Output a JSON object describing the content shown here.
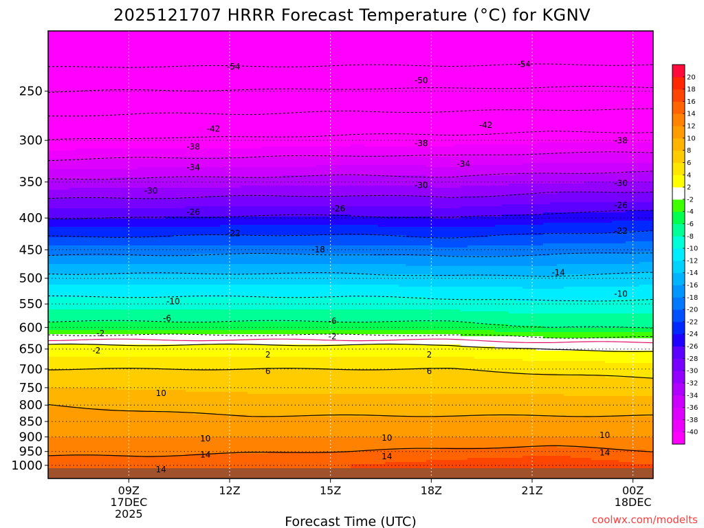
{
  "chart_data": {
    "type": "heatmap",
    "title": "2025121707 HRRR Forecast Temperature (°C) for KGNV",
    "xlabel": "Forecast Time (UTC)",
    "ylabel": "",
    "credit": "coolwx.com/modelts",
    "x_range_hours": [
      -2,
      28
    ],
    "y_axis": {
      "type": "log",
      "range": [
        1050,
        200
      ],
      "ticks": [
        "250",
        "300",
        "350",
        "400",
        "450",
        "500",
        "550",
        "600",
        "650",
        "700",
        "750",
        "800",
        "850",
        "900",
        "950",
        "1000"
      ]
    },
    "x_ticks": [
      {
        "hour": 2,
        "lines": [
          "09Z",
          "17DEC",
          "2025"
        ]
      },
      {
        "hour": 7,
        "lines": [
          "12Z"
        ]
      },
      {
        "hour": 12,
        "lines": [
          "15Z"
        ]
      },
      {
        "hour": 17,
        "lines": [
          "18Z"
        ]
      },
      {
        "hour": 22,
        "lines": [
          "21Z"
        ]
      },
      {
        "hour": 27,
        "lines": [
          "00Z",
          "18DEC"
        ]
      }
    ],
    "colorbar": {
      "levels": [
        -42,
        -40,
        -38,
        -36,
        -34,
        -32,
        -30,
        -28,
        -26,
        -24,
        -22,
        -20,
        -18,
        -16,
        -14,
        -12,
        -10,
        -8,
        -6,
        -4,
        -2,
        2,
        4,
        6,
        8,
        10,
        12,
        14,
        16,
        18,
        20,
        22
      ],
      "colors": [
        "#ff00ff",
        "#ee00ff",
        "#dd00ff",
        "#cc00ff",
        "#b000ff",
        "#9400ff",
        "#7800ff",
        "#5c00ff",
        "#2000ff",
        "#0028ff",
        "#0050ff",
        "#0078ff",
        "#0096ff",
        "#00b4ff",
        "#00d2ff",
        "#00ecff",
        "#00ffd8",
        "#00ff96",
        "#00ff50",
        "#40ff00",
        "#ffffff",
        "#ffff00",
        "#ffe600",
        "#ffcc00",
        "#ffb400",
        "#ff9c00",
        "#ff8200",
        "#ff6400",
        "#ff4600",
        "#ff2800",
        "#ff0a3c"
      ],
      "labels": [
        "20",
        "18",
        "16",
        "14",
        "12",
        "10",
        "8",
        "6",
        "4",
        "2",
        "-2",
        "-4",
        "-6",
        "-8",
        "-10",
        "-12",
        "-14",
        "-16",
        "-18",
        "-20",
        "-22",
        "-24",
        "-26",
        "-28",
        "-30",
        "-32",
        "-34",
        "-36",
        "-38",
        "-40"
      ]
    },
    "profile_columns": [
      {
        "hour": -2,
        "sfc": 25,
        "pts": [
          [
            200,
            -60
          ],
          [
            300,
            -42
          ],
          [
            400,
            -26
          ],
          [
            500,
            -13
          ],
          [
            600,
            -5
          ],
          [
            640,
            2
          ],
          [
            700,
            6
          ],
          [
            800,
            10
          ],
          [
            900,
            12
          ],
          [
            1000,
            15
          ]
        ]
      },
      {
        "hour": 3,
        "sfc": 25,
        "pts": [
          [
            200,
            -60
          ],
          [
            300,
            -41.5
          ],
          [
            400,
            -26
          ],
          [
            500,
            -13
          ],
          [
            600,
            -5
          ],
          [
            640,
            2
          ],
          [
            700,
            6
          ],
          [
            800,
            9.5
          ],
          [
            900,
            12
          ],
          [
            1000,
            15
          ]
        ]
      },
      {
        "hour": 8,
        "sfc": 25,
        "pts": [
          [
            200,
            -60
          ],
          [
            300,
            -41.5
          ],
          [
            400,
            -25.5
          ],
          [
            500,
            -13
          ],
          [
            600,
            -5
          ],
          [
            640,
            2
          ],
          [
            700,
            6
          ],
          [
            800,
            9
          ],
          [
            900,
            12
          ],
          [
            1000,
            15.5
          ]
        ]
      },
      {
        "hour": 13,
        "sfc": 25,
        "pts": [
          [
            200,
            -60
          ],
          [
            300,
            -41
          ],
          [
            400,
            -25.5
          ],
          [
            500,
            -13
          ],
          [
            600,
            -5
          ],
          [
            640,
            2
          ],
          [
            700,
            6
          ],
          [
            800,
            9
          ],
          [
            900,
            12
          ],
          [
            1000,
            16
          ]
        ]
      },
      {
        "hour": 18,
        "sfc": 25,
        "pts": [
          [
            200,
            -60
          ],
          [
            300,
            -41
          ],
          [
            400,
            -26
          ],
          [
            500,
            -13.5
          ],
          [
            600,
            -5
          ],
          [
            640,
            2
          ],
          [
            700,
            6
          ],
          [
            800,
            9
          ],
          [
            900,
            12
          ],
          [
            1000,
            17
          ]
        ]
      },
      {
        "hour": 23,
        "sfc": 25,
        "pts": [
          [
            200,
            -60
          ],
          [
            300,
            -40.5
          ],
          [
            400,
            -25
          ],
          [
            500,
            -13.5
          ],
          [
            600,
            -6
          ],
          [
            640,
            1
          ],
          [
            700,
            5.5
          ],
          [
            800,
            9
          ],
          [
            900,
            12
          ],
          [
            1000,
            18
          ]
        ]
      },
      {
        "hour": 28,
        "sfc": 25,
        "pts": [
          [
            200,
            -60
          ],
          [
            300,
            -40.5
          ],
          [
            400,
            -24.5
          ],
          [
            500,
            -13
          ],
          [
            600,
            -6
          ],
          [
            640,
            1
          ],
          [
            700,
            5
          ],
          [
            800,
            9
          ],
          [
            900,
            12
          ],
          [
            1000,
            16
          ]
        ]
      }
    ],
    "contour_labels": [
      {
        "text": "-54",
        "hour": 7.2,
        "p": 228
      },
      {
        "text": "-54",
        "hour": 21.6,
        "p": 226
      },
      {
        "text": "-50",
        "hour": 16.5,
        "p": 240
      },
      {
        "text": "-42",
        "hour": 6.2,
        "p": 287
      },
      {
        "text": "-42",
        "hour": 19.7,
        "p": 283
      },
      {
        "text": "-38",
        "hour": 5.2,
        "p": 307
      },
      {
        "text": "-38",
        "hour": 16.5,
        "p": 303
      },
      {
        "text": "-38",
        "hour": 26.4,
        "p": 300
      },
      {
        "text": "-34",
        "hour": 5.2,
        "p": 331
      },
      {
        "text": "-34",
        "hour": 18.6,
        "p": 327
      },
      {
        "text": "-30",
        "hour": 3.1,
        "p": 361
      },
      {
        "text": "-30",
        "hour": 16.5,
        "p": 354
      },
      {
        "text": "-30",
        "hour": 26.4,
        "p": 351
      },
      {
        "text": "-26",
        "hour": 5.2,
        "p": 391
      },
      {
        "text": "-26",
        "hour": 12.4,
        "p": 386
      },
      {
        "text": "-26",
        "hour": 26.4,
        "p": 381
      },
      {
        "text": "-22",
        "hour": 7.2,
        "p": 423
      },
      {
        "text": "-22",
        "hour": 26.4,
        "p": 419
      },
      {
        "text": "-18",
        "hour": 11.4,
        "p": 449
      },
      {
        "text": "-14",
        "hour": 23.3,
        "p": 489
      },
      {
        "text": "-10",
        "hour": 26.4,
        "p": 529
      },
      {
        "text": "-10",
        "hour": 4.2,
        "p": 544
      },
      {
        "text": "-6",
        "hour": 3.9,
        "p": 579
      },
      {
        "text": "-6",
        "hour": 12.1,
        "p": 585
      },
      {
        "text": "-2",
        "hour": 12.1,
        "p": 620
      },
      {
        "text": "-2",
        "hour": 0.6,
        "p": 613
      },
      {
        "text": "-2",
        "hour": 0.4,
        "p": 653
      },
      {
        "text": "2",
        "hour": 8.9,
        "p": 663
      },
      {
        "text": "2",
        "hour": 16.9,
        "p": 663
      },
      {
        "text": "6",
        "hour": 8.9,
        "p": 705
      },
      {
        "text": "6",
        "hour": 16.9,
        "p": 705
      },
      {
        "text": "10",
        "hour": 3.6,
        "p": 765
      },
      {
        "text": "10",
        "hour": 5.8,
        "p": 905
      },
      {
        "text": "10",
        "hour": 14.8,
        "p": 902
      },
      {
        "text": "10",
        "hour": 25.6,
        "p": 893
      },
      {
        "text": "14",
        "hour": 5.8,
        "p": 961
      },
      {
        "text": "14",
        "hour": 14.8,
        "p": 966
      },
      {
        "text": "14",
        "hour": 25.6,
        "p": 953
      },
      {
        "text": "14",
        "hour": 3.6,
        "p": 1015
      }
    ]
  }
}
